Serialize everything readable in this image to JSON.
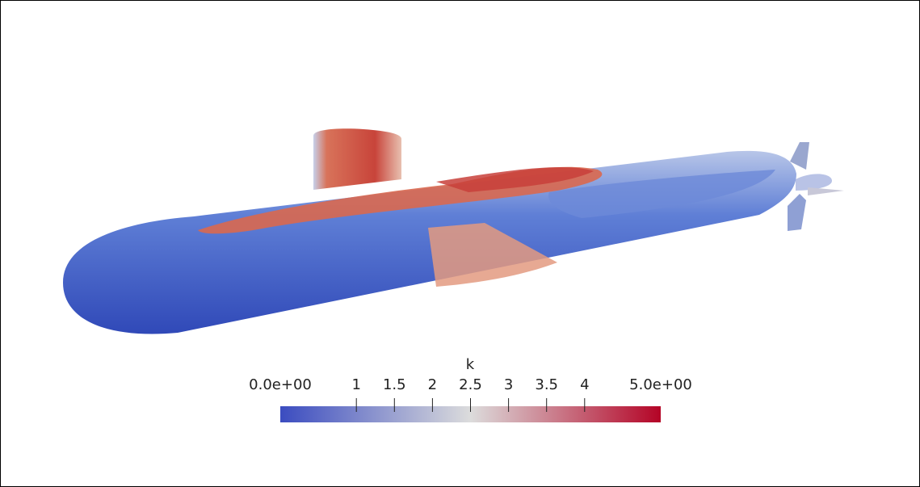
{
  "colorbar": {
    "title": "k",
    "range": [
      0,
      5
    ],
    "ticks": [
      {
        "value": 0,
        "label": "0.0e+00"
      },
      1,
      1.5,
      2,
      2.5,
      3,
      3.5,
      4,
      {
        "value": 5,
        "label": "5.0e+00"
      }
    ],
    "colors": [
      "#3b4cc0",
      "#dcdcdc",
      "#b40426"
    ]
  }
}
